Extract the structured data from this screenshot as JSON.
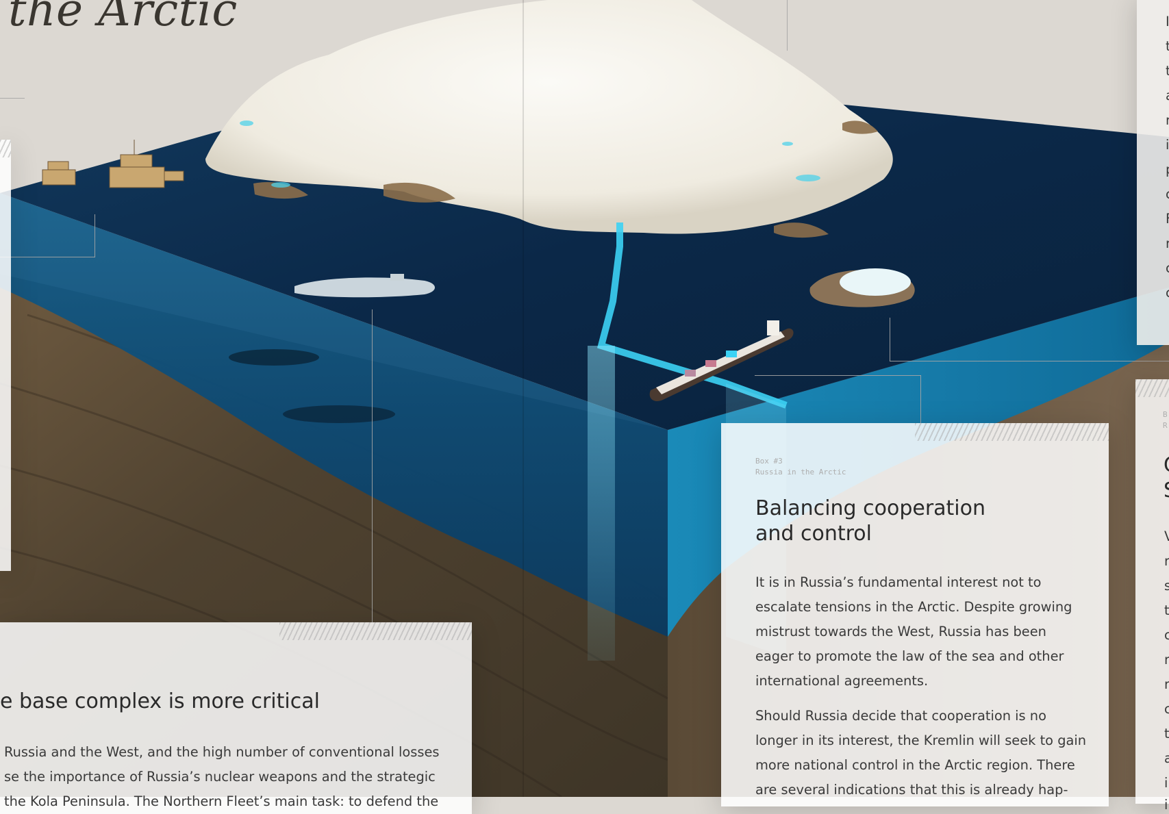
{
  "page": {
    "title": "the Arctic"
  },
  "box3": {
    "number": "Box #3",
    "subtitle": "Russia in the Arctic",
    "heading_line1": "Balancing cooperation",
    "heading_line2": "and control",
    "paragraph1": "It is in Russia’s fundamental interest not to escalate tensions in the Arctic. Despite growing mistrust towards the West, Russia has been eager to promote the law of the sea and other international agreements.",
    "paragraph2": "Should Russia decide that cooperation is no longer in its interest, the Kremlin will seek to gain more national control in the Arctic region. There are several indications that this is already hap-"
  },
  "left_box": {
    "heading": "e base complex is more critical",
    "line1": "Russia and the West, and the high number of conventional losses",
    "line2": "se the importance of Russia’s nuclear weapons and the strategic",
    "line3": "the Kola Peninsula. The Northern Fleet’s main task: to defend the"
  },
  "right_col_top": {
    "letters": [
      "I",
      "t",
      "t",
      "a",
      "r",
      "i",
      "p",
      "c",
      "F",
      "r",
      "c",
      "c"
    ]
  },
  "right_col_bottom": {
    "meta1": "B",
    "meta2": "R",
    "head1": "C",
    "head2": "S",
    "letters": [
      "V",
      "r",
      "s",
      "t",
      "c",
      "r",
      "r",
      "c",
      "t",
      "a",
      "i",
      "i"
    ]
  },
  "colors": {
    "background": "#dcd8d2",
    "ocean_deep": "#0b2540",
    "ocean_shallow": "#1c6d95",
    "ice": "#f2efe6",
    "route_cyan": "#3cd2f4",
    "rock": "#5c4a36"
  }
}
